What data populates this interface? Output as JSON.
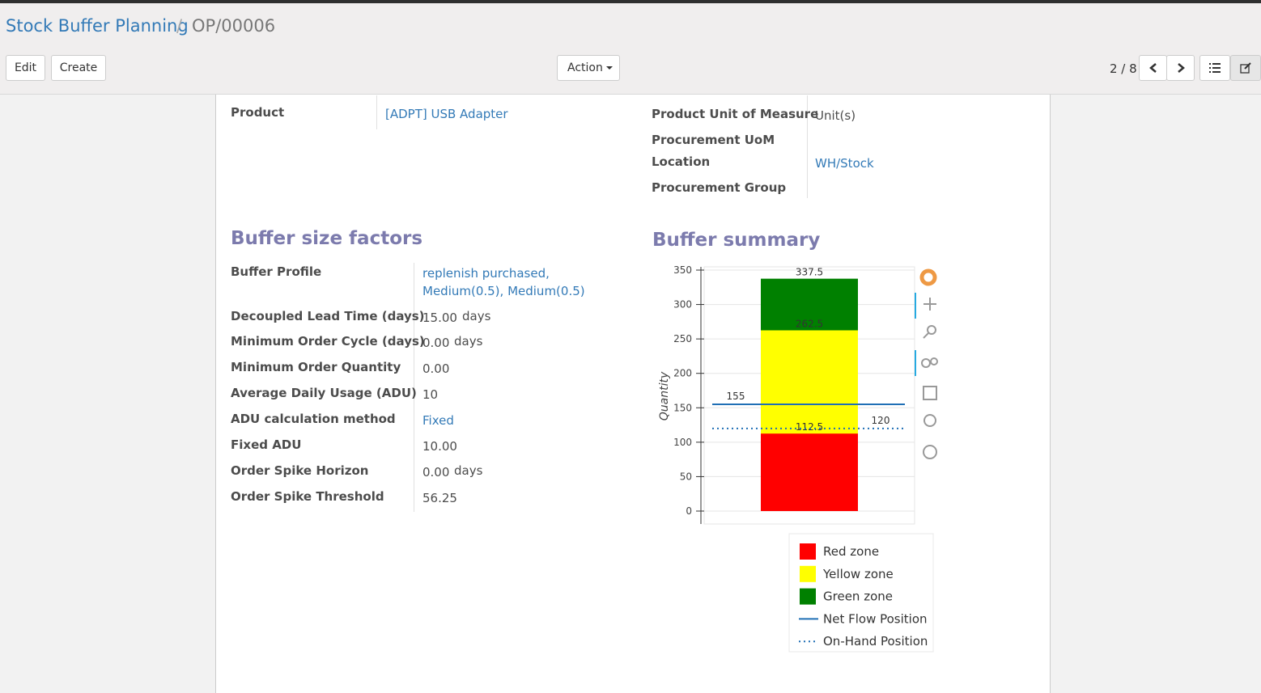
{
  "breadcrumb": {
    "items": [
      "Stock Buffer Planning",
      "OP/00006"
    ],
    "separator": "/"
  },
  "buttons": {
    "edit": "Edit",
    "create": "Create",
    "action": "Action"
  },
  "pager": "2 / 8",
  "form": {
    "product": {
      "label": "Product",
      "value": "[ADPT] USB Adapter",
      "is_link": true
    },
    "right_fields": [
      {
        "label": "Product Unit of Measure",
        "value": "Unit(s)"
      },
      {
        "label": "Procurement UoM"
      },
      {
        "label": "Location",
        "value": "WH/Stock",
        "is_link": true
      },
      {
        "label": "Procurement Group"
      }
    ],
    "buffer_factors": {
      "title": "Buffer size factors",
      "fields": [
        {
          "label": "Buffer Profile",
          "value": "replenish purchased, Medium(0.5), Medium(0.5)",
          "is_link": true
        },
        {
          "label": "Decoupled Lead Time (days)",
          "value": "15.00",
          "unit": "days"
        },
        {
          "label": "Minimum Order Cycle (days)",
          "value": "0.00",
          "unit": "days"
        },
        {
          "label": "Minimum Order Quantity",
          "value": "0.00"
        },
        {
          "label": "Average Daily Usage (ADU)",
          "value": "10"
        },
        {
          "label": "ADU calculation method",
          "value": "Fixed",
          "is_link": true
        },
        {
          "label": "Fixed ADU",
          "value": "10.00"
        },
        {
          "label": "Order Spike Horizon",
          "value": "0.00",
          "unit": "days"
        },
        {
          "label": "Order Spike Threshold",
          "value": "56.25"
        }
      ]
    },
    "buffer_summary": {
      "title": "Buffer summary"
    }
  },
  "chart_data": {
    "type": "bar",
    "y_label": "Quantity",
    "categories": [
      null
    ],
    "overlap": true,
    "series": [
      {
        "name": "Red zone",
        "color": "#ff0000",
        "values": [
          112.5
        ]
      },
      {
        "name": "Yellow zone",
        "color": "#ffff00",
        "values": [
          262.5
        ]
      },
      {
        "name": "Green zone",
        "color": "#008000",
        "values": [
          337.5
        ]
      }
    ],
    "hlines": [
      {
        "name": "Net Flow Position",
        "value": 155,
        "color": "#1f6fb5",
        "dashed": false,
        "label_side": "left"
      },
      {
        "name": "On-Hand Position",
        "value": 120,
        "color": "#1f6fb5",
        "dashed": true,
        "label_side": "right"
      }
    ],
    "ylim": [
      -18.8,
      354.7
    ],
    "yticks": [
      0,
      50,
      100,
      150,
      200,
      250,
      300,
      350
    ],
    "grid": true,
    "legend": "bottom"
  }
}
